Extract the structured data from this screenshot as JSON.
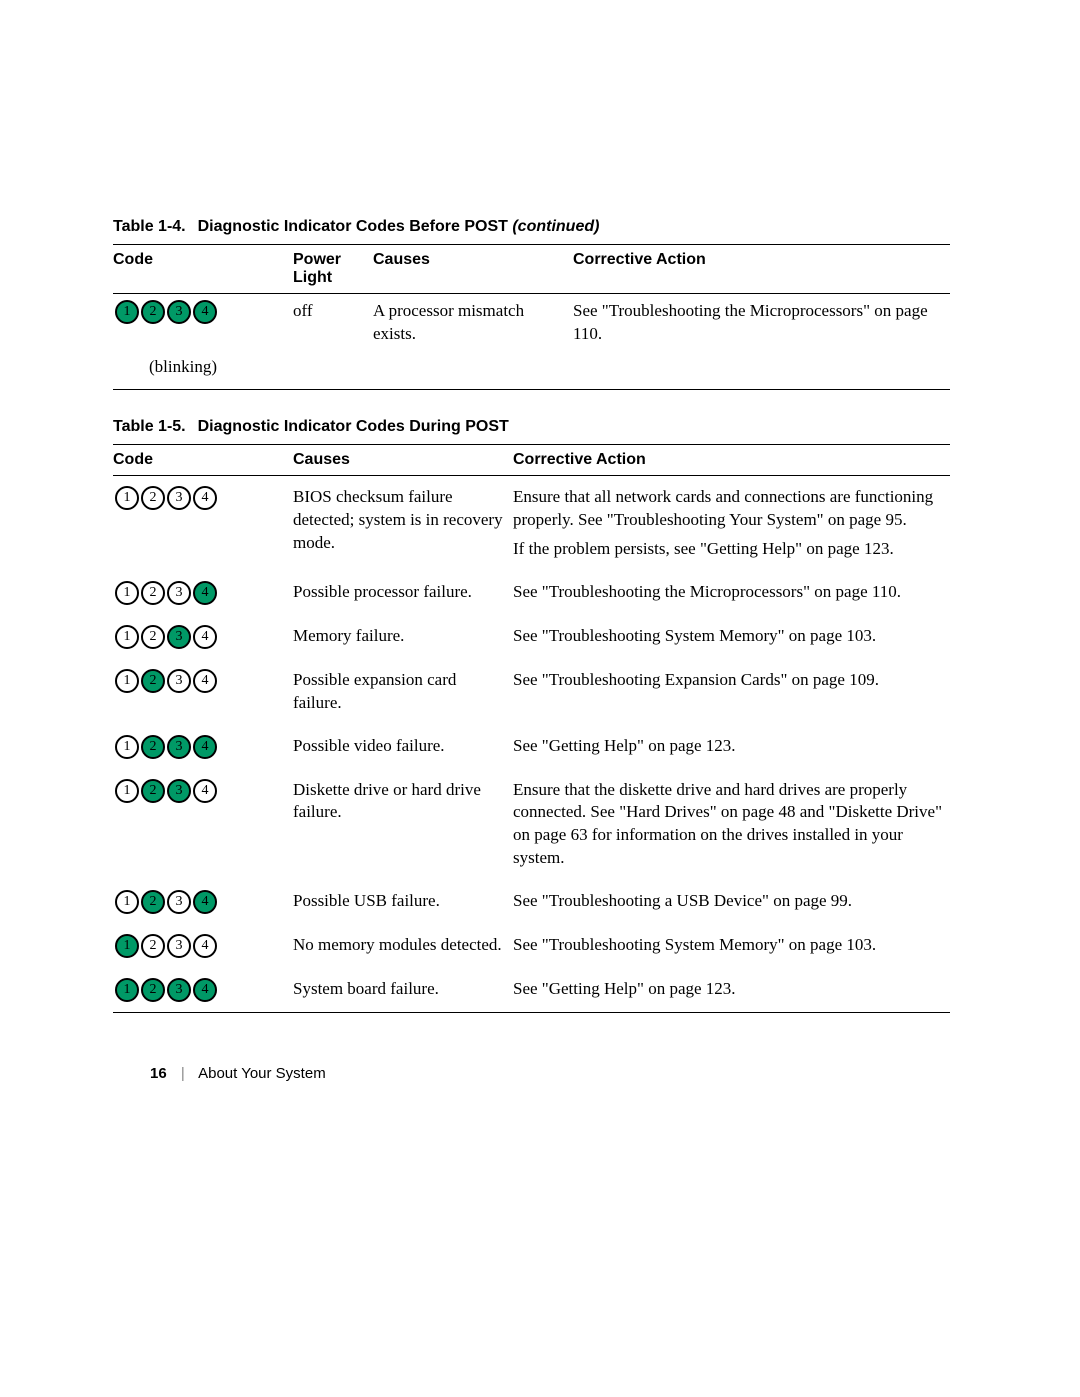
{
  "colors": {
    "on": "#009966",
    "off": "#ffffff",
    "border": "#000000",
    "text": "#000000"
  },
  "circle": {
    "diameter": 24,
    "border_width": 2.5,
    "gap": 2
  },
  "table14": {
    "caption_num": "Table 1-4.",
    "caption_title": "Diagnostic Indicator Codes Before POST ",
    "caption_cont": "(continued)",
    "headers": {
      "code": "Code",
      "power_light": "Power Light",
      "causes": "Causes",
      "action": "Corrective Action"
    },
    "row": {
      "pattern": [
        "on",
        "on",
        "on",
        "on"
      ],
      "power_light": "off",
      "causes": "A processor mismatch exists.",
      "action": "See \"Troubleshooting the Microprocessors\" on page 110.",
      "blinking": "(blinking)"
    }
  },
  "table15": {
    "caption_num": "Table 1-5.",
    "caption_title": "Diagnostic Indicator Codes During POST",
    "headers": {
      "code": "Code",
      "causes": "Causes",
      "action": "Corrective Action"
    },
    "rows": [
      {
        "pattern": [
          "off",
          "off",
          "off",
          "off"
        ],
        "causes": "BIOS checksum failure detected; system is in recovery mode.",
        "action": "Ensure that all network cards and connections are functioning properly. See \"Troubleshooting Your System\" on page 95.",
        "action2": "If the problem persists, see \"Getting Help\" on page 123."
      },
      {
        "pattern": [
          "off",
          "off",
          "off",
          "on"
        ],
        "causes": "Possible processor failure.",
        "action": "See \"Troubleshooting the Microprocessors\" on page 110."
      },
      {
        "pattern": [
          "off",
          "off",
          "on",
          "off"
        ],
        "causes": "Memory failure.",
        "action": "See \"Troubleshooting System Memory\" on page 103."
      },
      {
        "pattern": [
          "off",
          "on",
          "off",
          "off"
        ],
        "causes": "Possible expansion card failure.",
        "action": "See \"Troubleshooting Expansion Cards\" on page 109."
      },
      {
        "pattern": [
          "off",
          "on",
          "on",
          "on"
        ],
        "causes": "Possible video failure.",
        "action": "See \"Getting Help\" on page 123."
      },
      {
        "pattern": [
          "off",
          "on",
          "on",
          "off"
        ],
        "causes": "Diskette drive or hard drive failure.",
        "action": "Ensure that the diskette drive and hard drives are properly connected. See \"Hard Drives\" on page 48 and \"Diskette Drive\" on page 63 for information on the drives installed in your system."
      },
      {
        "pattern": [
          "off",
          "on",
          "off",
          "on"
        ],
        "causes": "Possible USB failure.",
        "action": "See \"Troubleshooting a USB Device\" on page 99."
      },
      {
        "pattern": [
          "on",
          "off",
          "off",
          "off"
        ],
        "causes": "No memory modules detected.",
        "action": "See \"Troubleshooting System Memory\" on page 103."
      },
      {
        "pattern": [
          "on",
          "on",
          "on",
          "on"
        ],
        "causes": "System board failure.",
        "action": "See \"Getting Help\" on page 123."
      }
    ]
  },
  "footer": {
    "page_number": "16",
    "section": "About Your System"
  }
}
